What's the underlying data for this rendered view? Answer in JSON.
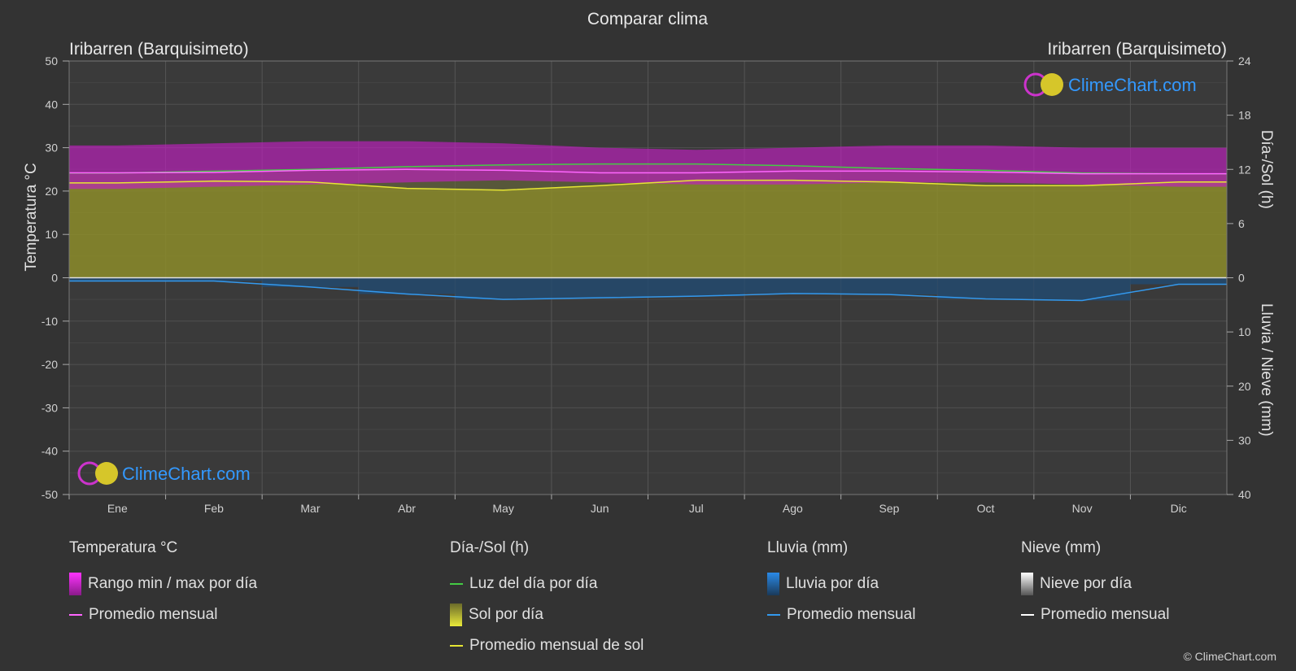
{
  "title": "Comparar clima",
  "location_left": "Iribarren (Barquisimeto)",
  "location_right": "Iribarren (Barquisimeto)",
  "brand": "ClimeChart.com",
  "copyright": "© ClimeChart.com",
  "legend": {
    "temperature": {
      "header": "Temperatura °C",
      "range": "Rango min / max por día",
      "avg": "Promedio mensual"
    },
    "sun": {
      "header": "Día-/Sol (h)",
      "daylight": "Luz del día por día",
      "sun": "Sol por día",
      "avg": "Promedio mensual de sol"
    },
    "rain": {
      "header": "Lluvia (mm)",
      "rain": "Lluvia por día",
      "avg": "Promedio mensual"
    },
    "snow": {
      "header": "Nieve (mm)",
      "snow": "Nieve por día",
      "avg": "Promedio mensual"
    }
  },
  "colors": {
    "temp_range": "#c21fc2",
    "temp_avg": "#ff66ff",
    "daylight": "#44cc44",
    "sun_fill": "#8c8c2a",
    "sun_avg": "#e6e633",
    "rain": "#2a7fd4",
    "rain_avg": "#3399ee",
    "snow_avg": "#ffffff",
    "brand": "#3399ff"
  },
  "chart_data": {
    "type": "area",
    "categories": [
      "Ene",
      "Feb",
      "Mar",
      "Abr",
      "May",
      "Jun",
      "Jul",
      "Ago",
      "Sep",
      "Oct",
      "Nov",
      "Dic"
    ],
    "y_left": {
      "label": "Temperatura °C",
      "range": [
        -50,
        50
      ],
      "ticks": [
        50,
        40,
        30,
        20,
        10,
        0,
        -10,
        -20,
        -30,
        -40,
        -50
      ]
    },
    "y_right_top": {
      "label": "Día-/Sol (h)",
      "range": [
        0,
        24
      ],
      "ticks": [
        24,
        18,
        12,
        6,
        0
      ]
    },
    "y_right_bottom": {
      "label": "Lluvia / Nieve (mm)",
      "range": [
        0,
        40
      ],
      "ticks": [
        0,
        10,
        20,
        30,
        40
      ]
    },
    "series": [
      {
        "name": "Rango min / max por día",
        "unit": "°C",
        "min": [
          20.5,
          21,
          21.5,
          22,
          22.5,
          22,
          21.5,
          21.5,
          22,
          22,
          21.5,
          21
        ],
        "max": [
          30.5,
          31,
          31.5,
          31.5,
          31,
          30,
          29.5,
          30,
          30.5,
          30.5,
          30,
          30
        ]
      },
      {
        "name": "Promedio mensual",
        "unit": "°C",
        "values": [
          24.2,
          24.3,
          24.8,
          25.0,
          24.8,
          24.2,
          24.2,
          24.6,
          24.6,
          24.4,
          24.0,
          24.0
        ]
      },
      {
        "name": "Luz del día por día",
        "unit": "h",
        "values": [
          11.6,
          11.8,
          12.0,
          12.3,
          12.5,
          12.6,
          12.6,
          12.4,
          12.1,
          11.9,
          11.6,
          11.5
        ]
      },
      {
        "name": "Promedio mensual de sol",
        "unit": "h",
        "values": [
          10.5,
          10.7,
          10.6,
          9.9,
          9.7,
          10.2,
          10.8,
          10.8,
          10.6,
          10.2,
          10.2,
          10.6
        ]
      },
      {
        "name": "Lluvia por día",
        "unit": "mm",
        "values": [
          0.6,
          0.6,
          1.7,
          3.0,
          4.0,
          3.7,
          3.4,
          2.9,
          3.1,
          3.9,
          4.2,
          1.2
        ]
      },
      {
        "name": "Promedio mensual",
        "unit": "mm",
        "values": [
          0.6,
          0.6,
          1.7,
          3.0,
          4.0,
          3.7,
          3.4,
          2.9,
          3.1,
          3.9,
          4.2,
          1.2
        ]
      }
    ],
    "grid": true
  }
}
